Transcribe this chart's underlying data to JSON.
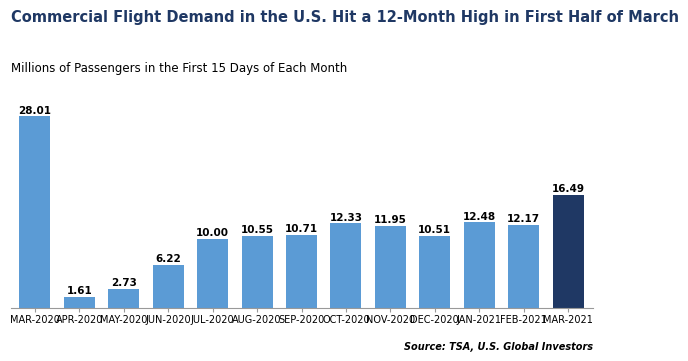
{
  "categories": [
    "MAR-2020",
    "APR-2020",
    "MAY-2020",
    "JUN-2020",
    "JUL-2020",
    "AUG-2020",
    "SEP-2020",
    "OCT-2020",
    "NOV-2020",
    "DEC-2020",
    "JAN-2021",
    "FEB-2021",
    "MAR-2021"
  ],
  "values": [
    28.01,
    1.61,
    2.73,
    6.22,
    10.0,
    10.55,
    10.71,
    12.33,
    11.95,
    10.51,
    12.48,
    12.17,
    16.49
  ],
  "bar_colors": [
    "#5b9bd5",
    "#5b9bd5",
    "#5b9bd5",
    "#5b9bd5",
    "#5b9bd5",
    "#5b9bd5",
    "#5b9bd5",
    "#5b9bd5",
    "#5b9bd5",
    "#5b9bd5",
    "#5b9bd5",
    "#5b9bd5",
    "#1f3864"
  ],
  "title": "Commercial Flight Demand in the U.S. Hit a 12-Month High in First Half of March",
  "subtitle": "Millions of Passengers in the First 15 Days of Each Month",
  "source": "Source: TSA, U.S. Global Investors",
  "ylim": [
    0,
    30
  ],
  "title_fontsize": 10.5,
  "subtitle_fontsize": 8.5,
  "label_fontsize": 7.5,
  "tick_fontsize": 7,
  "source_fontsize": 7,
  "background_color": "#ffffff",
  "title_color": "#1f3864",
  "bar_value_color": "#000000"
}
